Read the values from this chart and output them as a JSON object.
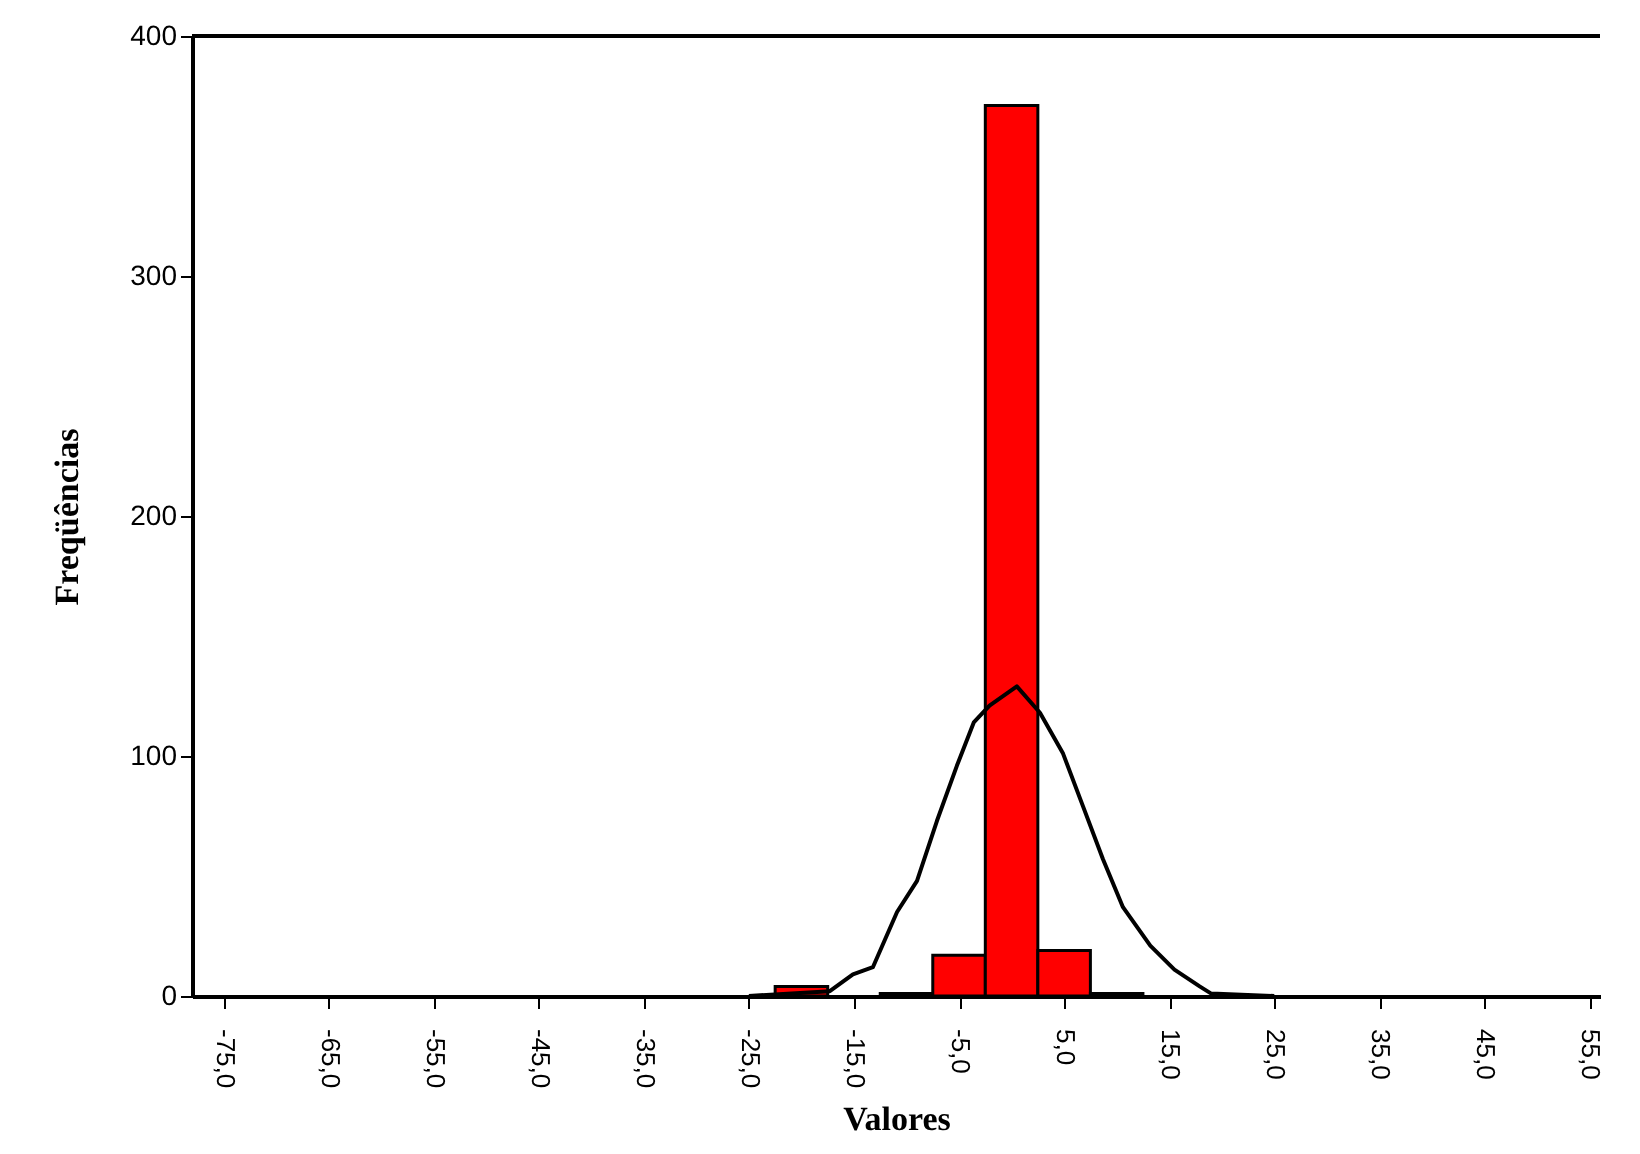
{
  "chart_data": {
    "type": "histogram",
    "xlabel": "Valores",
    "ylabel": "Freqüências",
    "bins": [
      -22.5,
      -17.5,
      -12.5,
      -7.5,
      -2.5,
      2.5,
      7.5,
      12.5
    ],
    "values": [
      4,
      null,
      1,
      17,
      371,
      19,
      1
    ],
    "color": "#ff0000",
    "series": [
      {
        "type": "line",
        "color": "#000000",
        "x": [
          -25,
          -17.3,
          -15.1,
          -13.2,
          -10.9,
          -9.0,
          -7.1,
          -5.2,
          -3.6,
          -2.1,
          0.5,
          2.7,
          4.9,
          6.8,
          8.7,
          10.6,
          13.2,
          15.5,
          17.9,
          19.0,
          25
        ],
        "values": [
          0,
          2,
          9,
          12,
          35,
          48,
          73,
          96,
          114,
          121,
          129,
          118,
          101,
          79,
          57,
          37,
          21,
          11,
          4,
          1,
          0
        ]
      }
    ],
    "xlim": [
      -78,
      56
    ],
    "xticks": [
      {
        "value": -75,
        "label": "-75,0"
      },
      {
        "value": -65,
        "label": "-65,0"
      },
      {
        "value": -55,
        "label": "-55,0"
      },
      {
        "value": -45,
        "label": "-45,0"
      },
      {
        "value": -35,
        "label": "-35,0"
      },
      {
        "value": -25,
        "label": "-25,0"
      },
      {
        "value": -15,
        "label": "-15,0"
      },
      {
        "value": -5,
        "label": "-5,0"
      },
      {
        "value": 5,
        "label": "5,0"
      },
      {
        "value": 15,
        "label": "15,0"
      },
      {
        "value": 25,
        "label": "25,0"
      },
      {
        "value": 35,
        "label": "35,0"
      },
      {
        "value": 45,
        "label": "45,0"
      },
      {
        "value": 55,
        "label": "55,0"
      }
    ],
    "ylim": [
      0,
      400
    ],
    "yticks": [
      0,
      100,
      200,
      300,
      400
    ],
    "grid": false
  }
}
